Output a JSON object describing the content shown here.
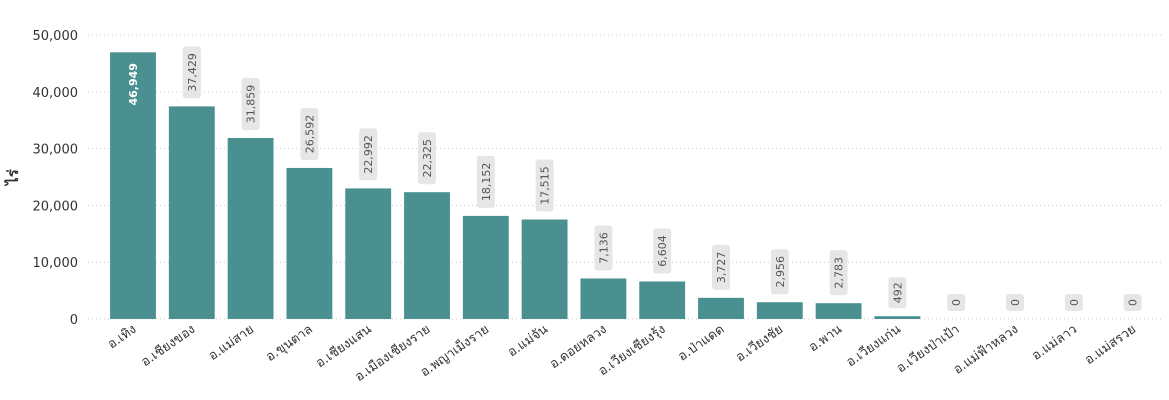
{
  "chart_data": {
    "type": "bar",
    "y_label": "ไร่",
    "categories": [
      "อ.เทิง",
      "อ.เชียงของ",
      "อ.แม่สาย",
      "อ.ขุนตาล",
      "อ.เชียงแสน",
      "อ.เมืองเชียงราย",
      "อ.พญาเม็งราย",
      "อ.แม่จัน",
      "อ.ดอยหลวง",
      "อ.เวียงเชียงรุ้ง",
      "อ.ป่าแดด",
      "อ.เวียงชัย",
      "อ.พาน",
      "อ.เวียงแก่น",
      "อ.เวียงป่าเป้า",
      "อ.แม่ฟ้าหลวง",
      "อ.แม่ลาว",
      "อ.แม่สรวย"
    ],
    "values": [
      46949,
      37429,
      31859,
      26592,
      22992,
      22325,
      18152,
      17515,
      7136,
      6604,
      3727,
      2956,
      2783,
      492,
      0,
      0,
      0,
      0
    ],
    "value_labels": [
      "46,949",
      "37,429",
      "31,859",
      "26,592",
      "22,992",
      "22,325",
      "18,152",
      "17,515",
      "7,136",
      "6,604",
      "3,727",
      "2,956",
      "2,783",
      "492",
      "0",
      "0",
      "0",
      "0"
    ],
    "color": "#4a9090",
    "ylim": [
      0,
      50000
    ],
    "yticks": [
      0,
      {
        "value": 10000,
        "label": "10,000"
      },
      {
        "value": 20000,
        "label": "20,000"
      },
      {
        "value": 30000,
        "label": "30,000"
      },
      {
        "value": 40000,
        "label": "40,000"
      },
      {
        "value": 50000,
        "label": "50,000"
      }
    ],
    "grid": true
  }
}
